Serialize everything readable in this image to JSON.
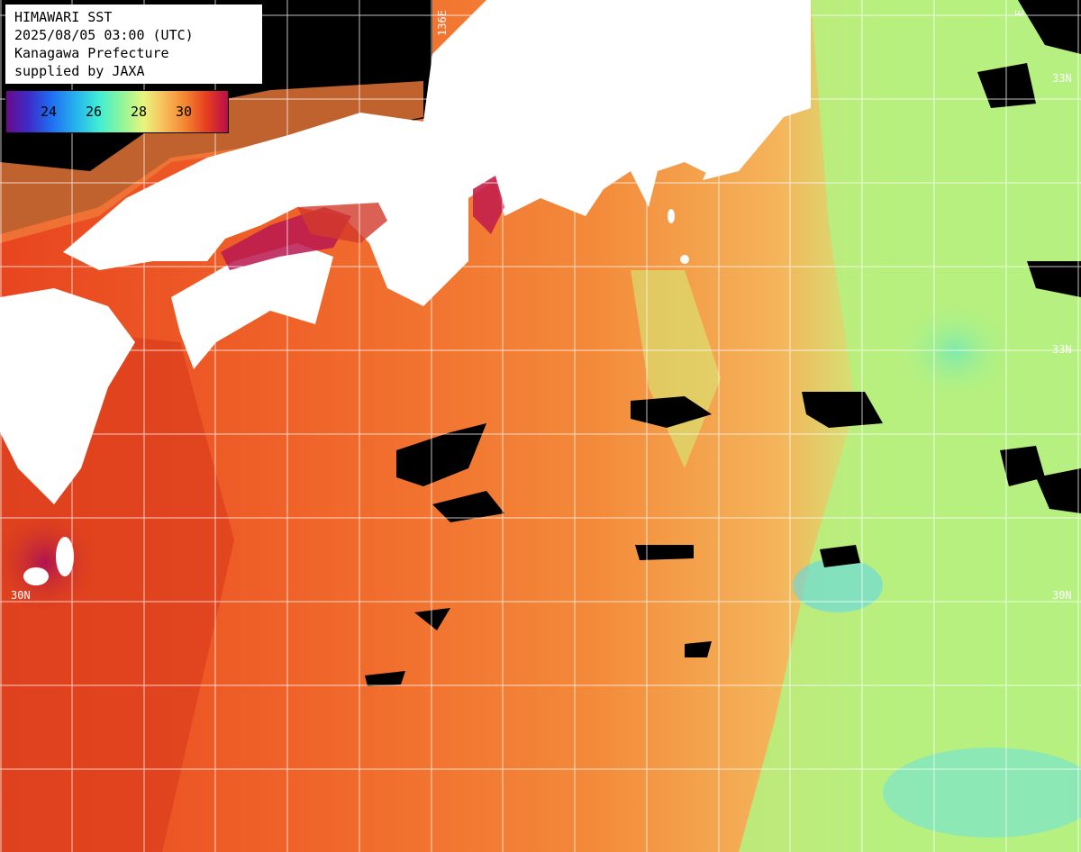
{
  "header": {
    "title": "HIMAWARI SST",
    "datetime": "2025/08/05 03:00 (UTC)",
    "region": "Kanagawa Prefecture",
    "supplier": "supplied by JAXA"
  },
  "legend": {
    "ticks": [
      "24",
      "26",
      "28",
      "30"
    ],
    "colors": [
      "#6a0a8a",
      "#1f6cf0",
      "#41eed4",
      "#e8f57d",
      "#f58a33",
      "#b80d4a"
    ]
  },
  "grid": {
    "lat_labels": [
      {
        "text": "33N",
        "value": 33
      },
      {
        "text": "30N",
        "value": 30
      }
    ],
    "lon_labels": [
      {
        "text": "136E",
        "value": 136
      }
    ],
    "partial_labels": [
      "33N",
      "33N",
      "30N",
      "Ε"
    ]
  },
  "colors": {
    "land": "#ffffff",
    "cloud": "#000000",
    "warm_sea": "#f06a2a",
    "hot_sea": "#d23a1c",
    "mild_sea": "#f59b45",
    "cool_sea": "#b7f57f",
    "cold_sea": "#41e4e8",
    "very_hot": "#b01252",
    "grid_line": "#ffffff"
  }
}
